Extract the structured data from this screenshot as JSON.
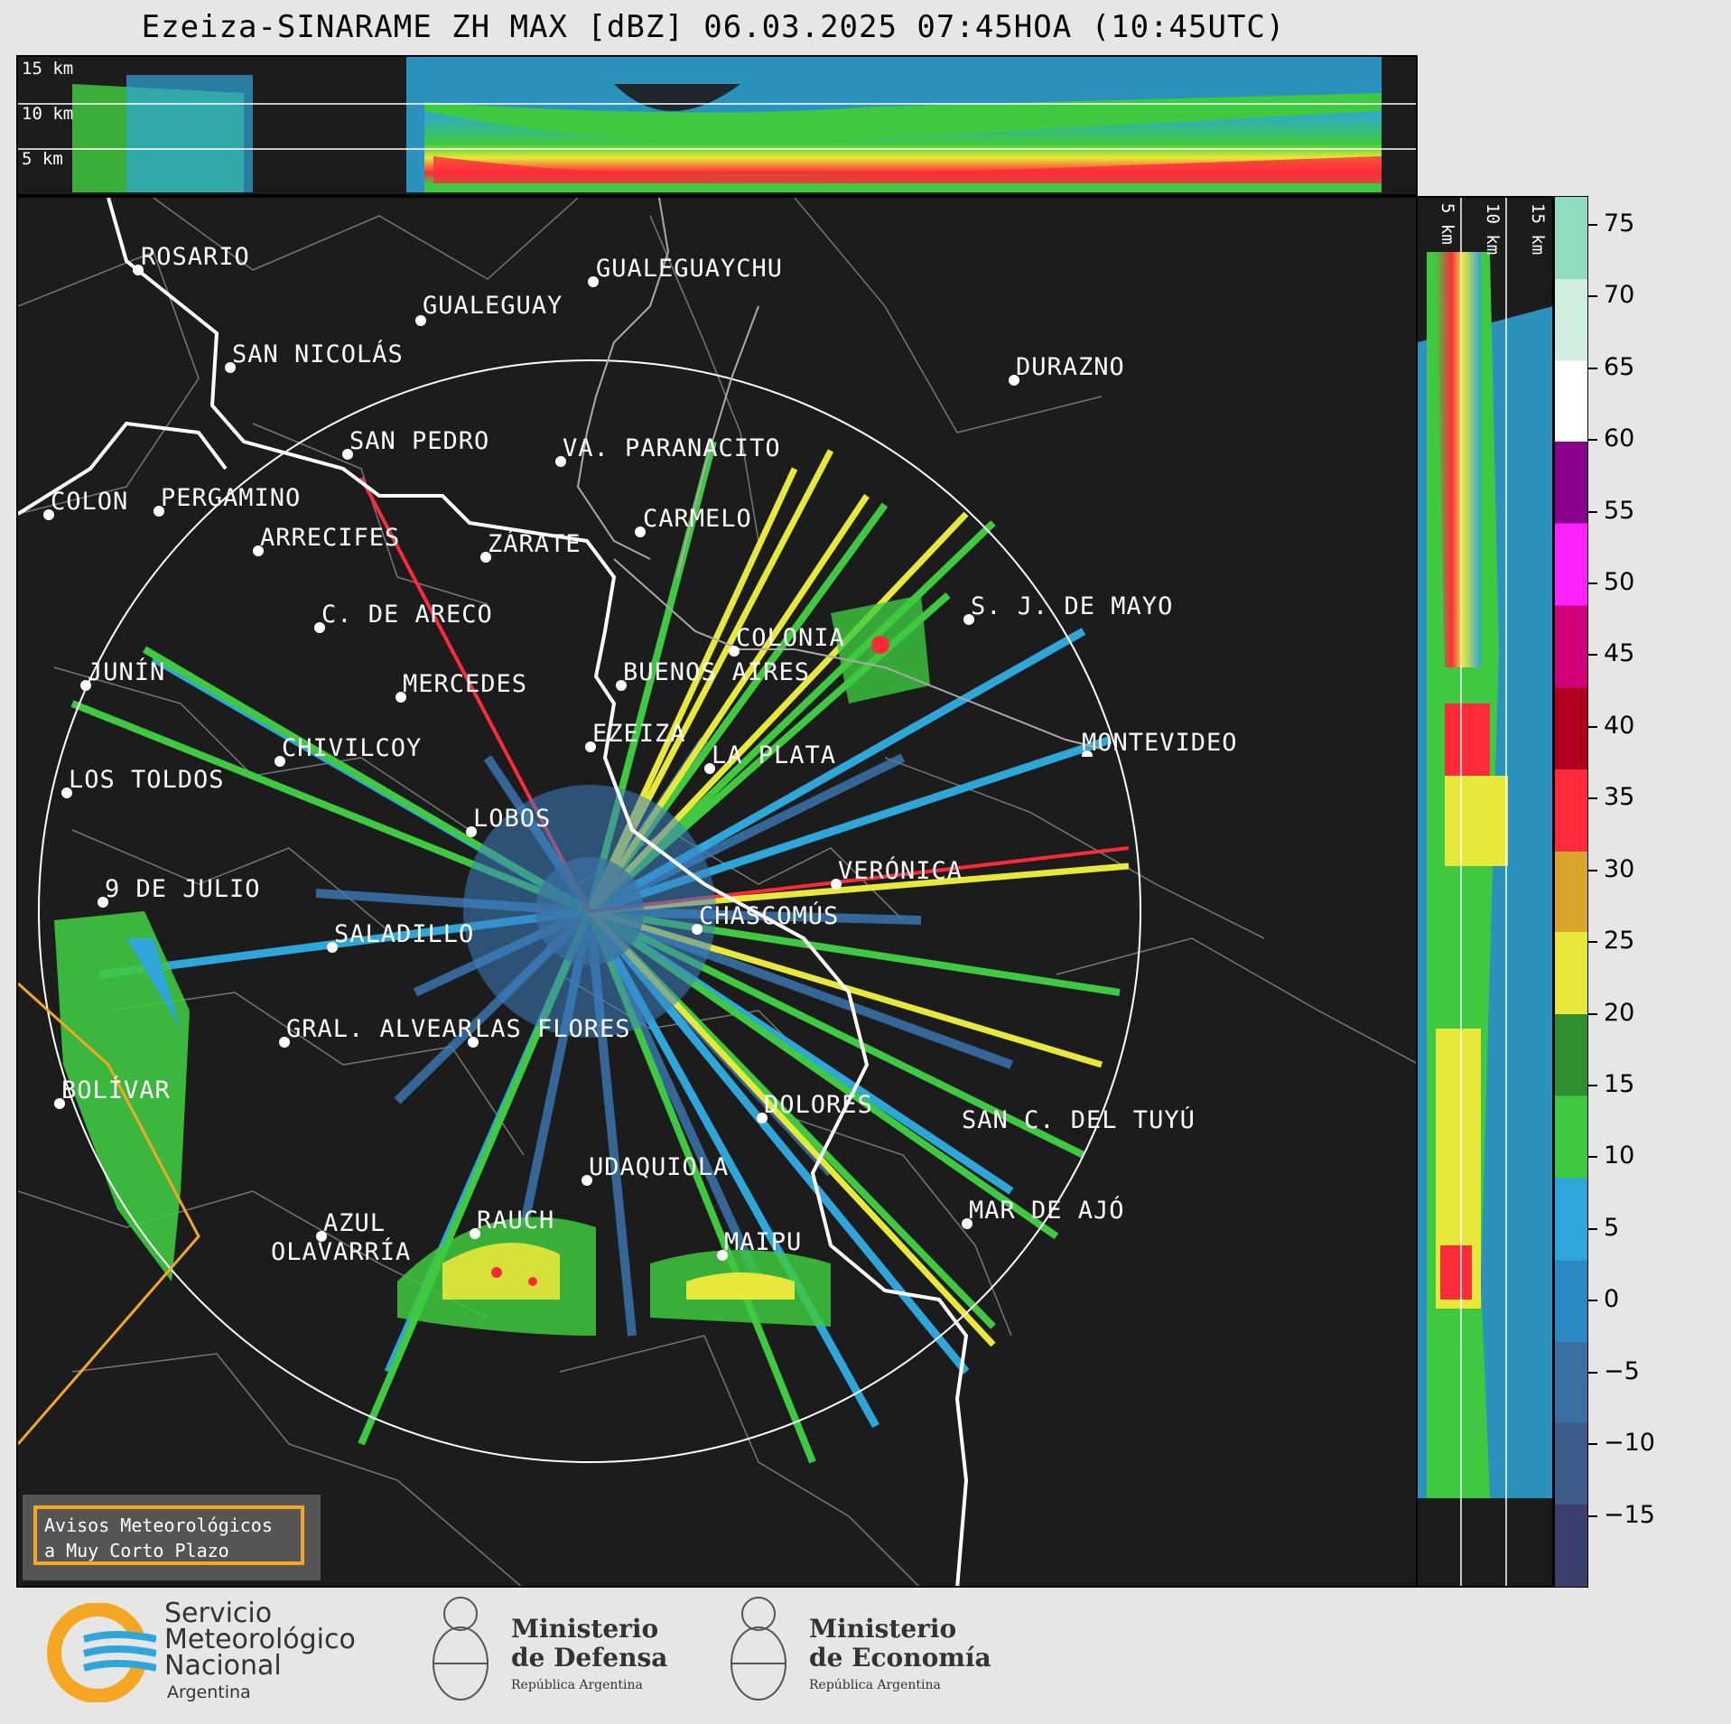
{
  "title": "Ezeiza-SINARAME ZH MAX [dBZ] 06.03.2025 07:45HOA (10:45UTC)",
  "top_panel": {
    "height_labels": [
      "15 km",
      "10 km",
      "5 km"
    ]
  },
  "side_panel": {
    "height_labels": [
      "5 km",
      "10 km",
      "15 km"
    ]
  },
  "colorbar": {
    "unit": "dBZ",
    "ticks": [
      "75",
      "70",
      "65",
      "60",
      "55",
      "50",
      "45",
      "40",
      "35",
      "30",
      "25",
      "20",
      "15",
      "10",
      "5",
      "0",
      "−5",
      "−10",
      "−15"
    ],
    "range": [
      -20,
      77
    ],
    "colors": [
      "#3a3f6e",
      "#3d5a8a",
      "#3c70a3",
      "#2a88c2",
      "#2ea6d9",
      "#3ec940",
      "#2f8f2e",
      "#e8e83a",
      "#d9a52a",
      "#ff2a3a",
      "#b00020",
      "#d0007a",
      "#ff22ff",
      "#8b008b",
      "#ffffff",
      "#cfeee0",
      "#8fdcc0"
    ]
  },
  "cities": [
    {
      "name": "ROSARIO"
    },
    {
      "name": "GUALEGUAYCHU"
    },
    {
      "name": "GUALEGUAY"
    },
    {
      "name": "SAN NICOLÁS"
    },
    {
      "name": "DURAZNO"
    },
    {
      "name": "SAN PEDRO"
    },
    {
      "name": "VA. PARANACITO"
    },
    {
      "name": "COLON"
    },
    {
      "name": "PERGAMINO"
    },
    {
      "name": "CARMELO"
    },
    {
      "name": "ARRECIFES"
    },
    {
      "name": "ZÁRATE"
    },
    {
      "name": "S. J. DE MAYO"
    },
    {
      "name": "C. DE ARECO"
    },
    {
      "name": "COLONIA"
    },
    {
      "name": "JUNÍN"
    },
    {
      "name": "BUENOS AIRES"
    },
    {
      "name": "MERCEDES"
    },
    {
      "name": "EZEIZA"
    },
    {
      "name": "CHIVILCOY"
    },
    {
      "name": "MONTEVIDEO"
    },
    {
      "name": "LA PLATA"
    },
    {
      "name": "LOS TOLDOS"
    },
    {
      "name": "LOBOS"
    },
    {
      "name": "VERÓNICA"
    },
    {
      "name": "9 DE JULIO"
    },
    {
      "name": "CHASCOMÚS"
    },
    {
      "name": "SALADILLO"
    },
    {
      "name": "GRAL. ALVEAR"
    },
    {
      "name": "LAS FLORES"
    },
    {
      "name": "BOLÍVAR"
    },
    {
      "name": "DOLORES"
    },
    {
      "name": "SAN C. DEL TUYÚ"
    },
    {
      "name": "UDAQUIOLA"
    },
    {
      "name": "MAR DE AJÓ"
    },
    {
      "name": "AZUL"
    },
    {
      "name": "RAUCH"
    },
    {
      "name": "OLAVARRÍA"
    },
    {
      "name": "MAIPU"
    }
  ],
  "avisos": {
    "line1": "Avisos Meteorológicos",
    "line2": "a Muy Corto Plazo"
  },
  "logos": {
    "smn": {
      "line1": "Servicio",
      "line2": "Meteorológico",
      "line3": "Nacional",
      "line4": "Argentina"
    },
    "defensa": {
      "line1": "Ministerio",
      "line2": "de Defensa",
      "line3": "República Argentina"
    },
    "economia": {
      "line1": "Ministerio",
      "line2": "de Economía",
      "line3": "República Argentina"
    }
  }
}
